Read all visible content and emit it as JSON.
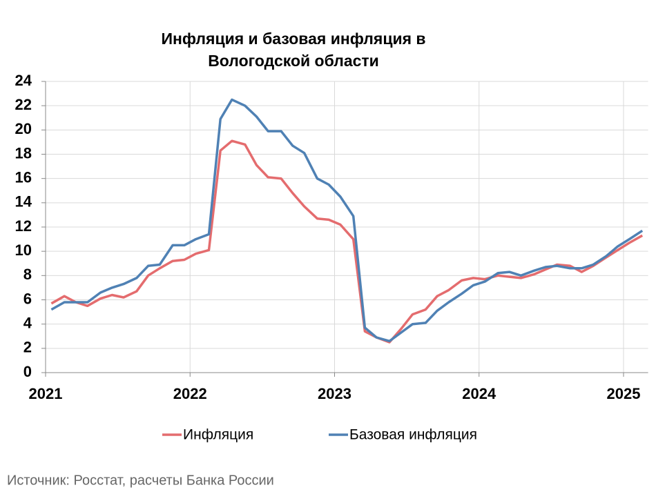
{
  "chart_data": {
    "type": "line",
    "title": [
      "Инфляция и базовая инфляция в",
      "Вологодской области"
    ],
    "source": "Источник: Росстат, расчеты Банка России",
    "x": [
      2021.04,
      2021.13,
      2021.21,
      2021.29,
      2021.38,
      2021.46,
      2021.54,
      2021.63,
      2021.71,
      2021.79,
      2021.88,
      2021.96,
      2022.04,
      2022.13,
      2022.21,
      2022.29,
      2022.38,
      2022.46,
      2022.54,
      2022.63,
      2022.71,
      2022.79,
      2022.88,
      2022.96,
      2023.04,
      2023.13,
      2023.21,
      2023.29,
      2023.38,
      2023.46,
      2023.54,
      2023.63,
      2023.71,
      2023.79,
      2023.88,
      2023.96,
      2024.04,
      2024.13,
      2024.21,
      2024.29,
      2024.38,
      2024.46,
      2024.54,
      2024.63,
      2024.71,
      2024.79,
      2024.88,
      2024.96,
      2025.04,
      2025.13
    ],
    "series": [
      {
        "name": "Инфляция",
        "color": "#e46c6e",
        "values": [
          5.7,
          6.3,
          5.8,
          5.5,
          6.1,
          6.4,
          6.2,
          6.7,
          8.0,
          8.6,
          9.2,
          9.3,
          9.8,
          10.1,
          18.3,
          19.1,
          18.8,
          17.1,
          16.1,
          16.0,
          14.8,
          13.7,
          12.7,
          12.6,
          12.2,
          11.0,
          3.4,
          2.9,
          2.5,
          3.6,
          4.8,
          5.2,
          6.3,
          6.8,
          7.6,
          7.8,
          7.7,
          8.0,
          7.9,
          7.8,
          8.1,
          8.5,
          8.9,
          8.8,
          8.3,
          8.8,
          9.5,
          10.1,
          10.7,
          11.3
        ]
      },
      {
        "name": "Базовая инфляция",
        "color": "#4f81b4",
        "values": [
          5.2,
          5.8,
          5.8,
          5.8,
          6.6,
          7.0,
          7.3,
          7.8,
          8.8,
          8.9,
          10.5,
          10.5,
          11.0,
          11.4,
          20.9,
          22.5,
          22.0,
          21.1,
          19.9,
          19.9,
          18.7,
          18.1,
          16.0,
          15.5,
          14.5,
          12.9,
          3.7,
          2.9,
          2.6,
          3.3,
          4.0,
          4.1,
          5.1,
          5.8,
          6.5,
          7.2,
          7.5,
          8.2,
          8.3,
          8.0,
          8.4,
          8.7,
          8.8,
          8.6,
          8.6,
          8.9,
          9.6,
          10.4,
          11.0,
          11.7
        ]
      }
    ],
    "xlim": [
      2021,
      2025.17
    ],
    "xticks": [
      2021,
      2022,
      2023,
      2024,
      2025
    ],
    "ylim": [
      0,
      24
    ],
    "yticks": [
      0,
      2,
      4,
      6,
      8,
      10,
      12,
      14,
      16,
      18,
      20,
      22,
      24
    ],
    "grid": true,
    "legend": "bottom"
  }
}
